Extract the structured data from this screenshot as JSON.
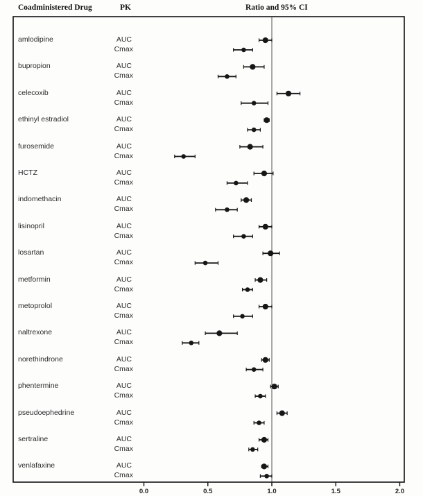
{
  "header": {
    "col_drug": "Coadministered Drug",
    "col_pk": "PK",
    "col_ratio": "Ratio and 95% CI"
  },
  "chart_data": {
    "type": "scatter",
    "subtype": "forest-plot",
    "title": "Ratio and 95% CI",
    "xlabel": "",
    "ylabel": "",
    "xlim": [
      -1.0,
      2.05
    ],
    "x_ticks": [
      0.0,
      0.5,
      1.0,
      1.5,
      2.0
    ],
    "x_tick_labels": [
      "0.0",
      "0.5",
      "1.0",
      "1.5",
      "2.0"
    ],
    "reference_line": 1.0,
    "grid": "off",
    "pk_metrics": [
      "AUC",
      "Cmax"
    ],
    "marker_color": "#161616",
    "line_color": "#161616",
    "ref_line_color": "#555555",
    "drugs": [
      {
        "name": "amlodipine",
        "AUC": {
          "ratio": 0.95,
          "lo": 0.9,
          "hi": 1.0
        },
        "Cmax": {
          "ratio": 0.78,
          "lo": 0.7,
          "hi": 0.85
        }
      },
      {
        "name": "bupropion",
        "AUC": {
          "ratio": 0.85,
          "lo": 0.78,
          "hi": 0.94
        },
        "Cmax": {
          "ratio": 0.65,
          "lo": 0.58,
          "hi": 0.72
        }
      },
      {
        "name": "celecoxib",
        "AUC": {
          "ratio": 1.13,
          "lo": 1.04,
          "hi": 1.22
        },
        "Cmax": {
          "ratio": 0.86,
          "lo": 0.76,
          "hi": 0.97
        }
      },
      {
        "name": "ethinyl estradiol",
        "AUC": {
          "ratio": 0.96,
          "lo": 0.94,
          "hi": 0.98
        },
        "Cmax": {
          "ratio": 0.86,
          "lo": 0.81,
          "hi": 0.91
        }
      },
      {
        "name": "furosemide",
        "AUC": {
          "ratio": 0.83,
          "lo": 0.75,
          "hi": 0.93
        },
        "Cmax": {
          "ratio": 0.31,
          "lo": 0.24,
          "hi": 0.4
        }
      },
      {
        "name": "HCTZ",
        "AUC": {
          "ratio": 0.94,
          "lo": 0.86,
          "hi": 1.01
        },
        "Cmax": {
          "ratio": 0.72,
          "lo": 0.65,
          "hi": 0.81
        }
      },
      {
        "name": "indomethacin",
        "AUC": {
          "ratio": 0.8,
          "lo": 0.76,
          "hi": 0.84
        },
        "Cmax": {
          "ratio": 0.65,
          "lo": 0.56,
          "hi": 0.73
        }
      },
      {
        "name": "lisinopril",
        "AUC": {
          "ratio": 0.95,
          "lo": 0.9,
          "hi": 1.0
        },
        "Cmax": {
          "ratio": 0.78,
          "lo": 0.7,
          "hi": 0.85
        }
      },
      {
        "name": "losartan",
        "AUC": {
          "ratio": 0.99,
          "lo": 0.93,
          "hi": 1.06
        },
        "Cmax": {
          "ratio": 0.48,
          "lo": 0.4,
          "hi": 0.58
        }
      },
      {
        "name": "metformin",
        "AUC": {
          "ratio": 0.91,
          "lo": 0.87,
          "hi": 0.96
        },
        "Cmax": {
          "ratio": 0.81,
          "lo": 0.77,
          "hi": 0.85
        }
      },
      {
        "name": "metoprolol",
        "AUC": {
          "ratio": 0.95,
          "lo": 0.9,
          "hi": 1.0
        },
        "Cmax": {
          "ratio": 0.77,
          "lo": 0.7,
          "hi": 0.85
        }
      },
      {
        "name": "naltrexone",
        "AUC": {
          "ratio": 0.59,
          "lo": 0.48,
          "hi": 0.73
        },
        "Cmax": {
          "ratio": 0.37,
          "lo": 0.3,
          "hi": 0.43
        }
      },
      {
        "name": "norethindrone",
        "AUC": {
          "ratio": 0.95,
          "lo": 0.92,
          "hi": 0.98
        },
        "Cmax": {
          "ratio": 0.86,
          "lo": 0.8,
          "hi": 0.93
        }
      },
      {
        "name": "phentermine",
        "AUC": {
          "ratio": 1.02,
          "lo": 0.99,
          "hi": 1.05
        },
        "Cmax": {
          "ratio": 0.91,
          "lo": 0.87,
          "hi": 0.95
        }
      },
      {
        "name": "pseudoephedrine",
        "AUC": {
          "ratio": 1.08,
          "lo": 1.04,
          "hi": 1.12
        },
        "Cmax": {
          "ratio": 0.9,
          "lo": 0.86,
          "hi": 0.94
        }
      },
      {
        "name": "sertraline",
        "AUC": {
          "ratio": 0.94,
          "lo": 0.9,
          "hi": 0.97
        },
        "Cmax": {
          "ratio": 0.85,
          "lo": 0.82,
          "hi": 0.89
        }
      },
      {
        "name": "venlafaxine",
        "AUC": {
          "ratio": 0.94,
          "lo": 0.92,
          "hi": 0.97
        },
        "Cmax": {
          "ratio": 0.96,
          "lo": 0.91,
          "hi": 1.0
        }
      }
    ]
  }
}
